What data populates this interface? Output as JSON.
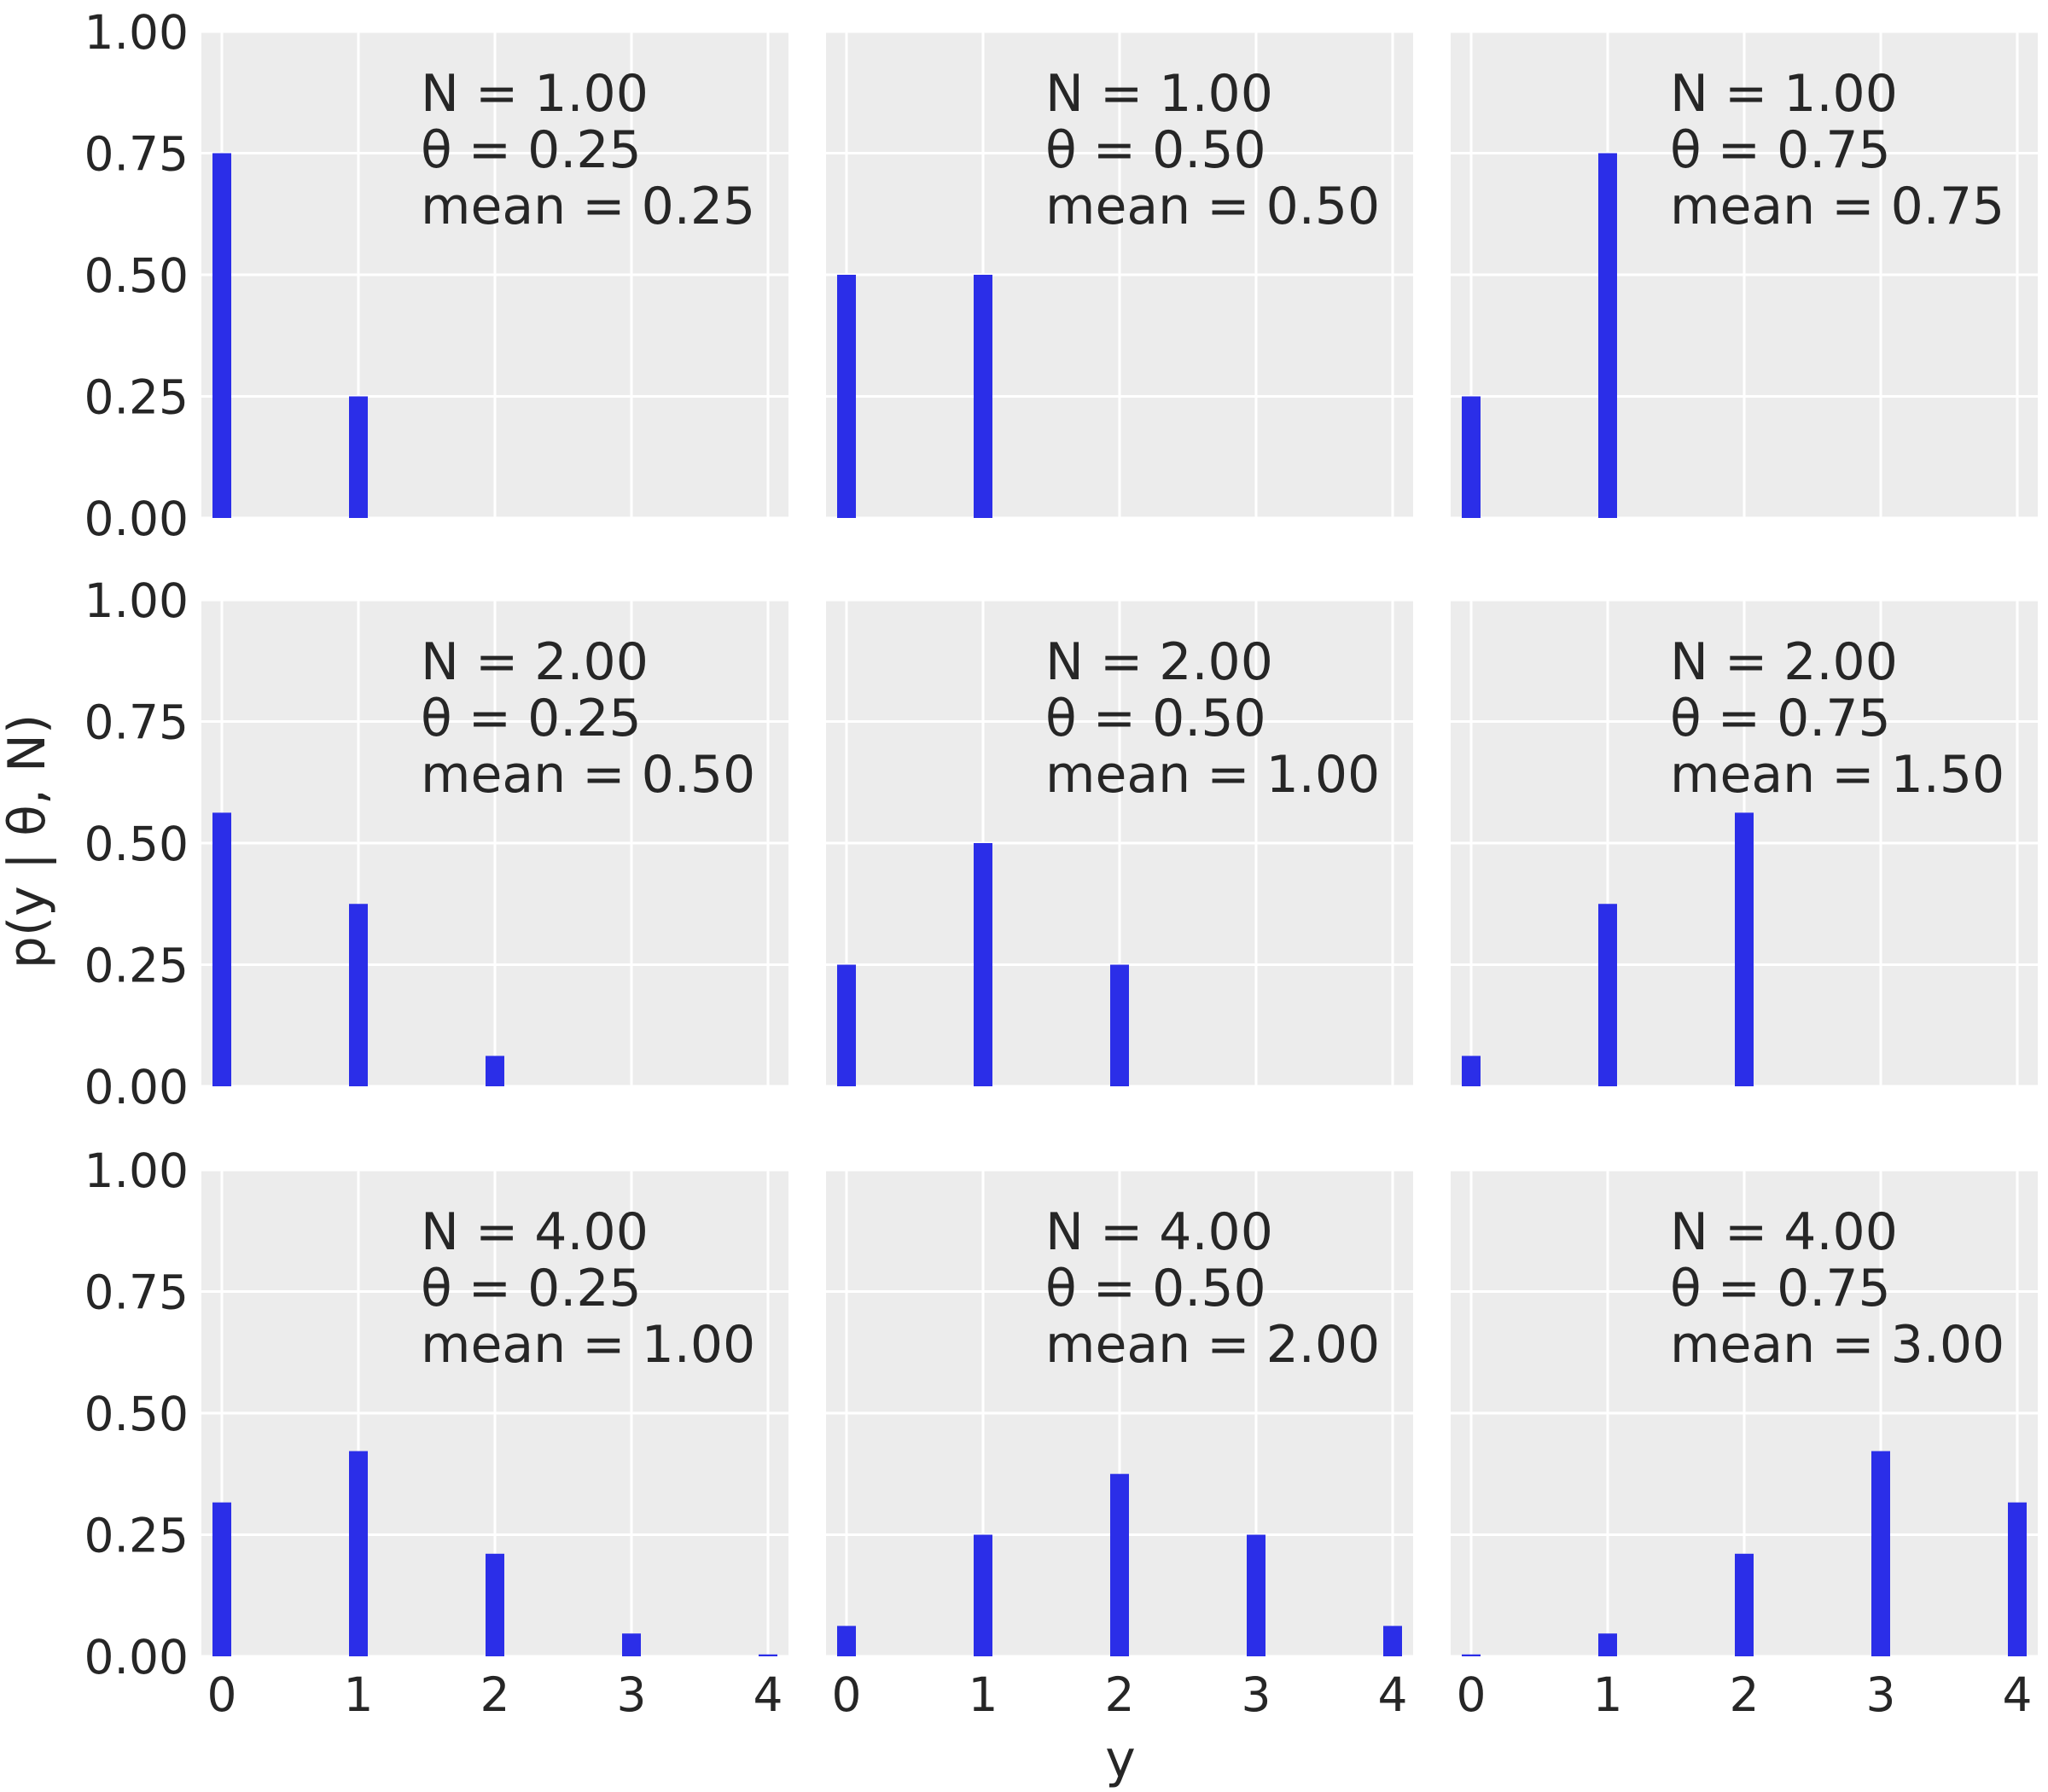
{
  "chart_data": {
    "type": "bar",
    "layout": "3x3 grid of panels, shared x and y axes",
    "xlabel": "y",
    "ylabel": "p(y | θ, N)",
    "xlim": [
      -0.15,
      4.15
    ],
    "ylim": [
      0,
      1
    ],
    "xticks": [
      "0",
      "1",
      "2",
      "3",
      "4"
    ],
    "yticks": [
      "0.00",
      "0.25",
      "0.50",
      "0.75",
      "1.00"
    ],
    "grid": true,
    "background": "#ececec",
    "grid_color": "#ffffff",
    "bar_color": "#2b2ee8",
    "panels": [
      {
        "annotation": [
          "N = 1.00",
          "θ = 0.25",
          "mean = 0.25"
        ],
        "x": [
          0,
          1
        ],
        "values": [
          0.75,
          0.25
        ]
      },
      {
        "annotation": [
          "N = 1.00",
          "θ = 0.50",
          "mean = 0.50"
        ],
        "x": [
          0,
          1
        ],
        "values": [
          0.5,
          0.5
        ]
      },
      {
        "annotation": [
          "N = 1.00",
          "θ = 0.75",
          "mean = 0.75"
        ],
        "x": [
          0,
          1
        ],
        "values": [
          0.25,
          0.75
        ]
      },
      {
        "annotation": [
          "N = 2.00",
          "θ = 0.25",
          "mean = 0.50"
        ],
        "x": [
          0,
          1,
          2
        ],
        "values": [
          0.5625,
          0.375,
          0.0625
        ]
      },
      {
        "annotation": [
          "N = 2.00",
          "θ = 0.50",
          "mean = 1.00"
        ],
        "x": [
          0,
          1,
          2
        ],
        "values": [
          0.25,
          0.5,
          0.25
        ]
      },
      {
        "annotation": [
          "N = 2.00",
          "θ = 0.75",
          "mean = 1.50"
        ],
        "x": [
          0,
          1,
          2
        ],
        "values": [
          0.0625,
          0.375,
          0.5625
        ]
      },
      {
        "annotation": [
          "N = 4.00",
          "θ = 0.25",
          "mean = 1.00"
        ],
        "x": [
          0,
          1,
          2,
          3,
          4
        ],
        "values": [
          0.3164,
          0.4219,
          0.2109,
          0.0469,
          0.0039
        ]
      },
      {
        "annotation": [
          "N = 4.00",
          "θ = 0.50",
          "mean = 2.00"
        ],
        "x": [
          0,
          1,
          2,
          3,
          4
        ],
        "values": [
          0.0625,
          0.25,
          0.375,
          0.25,
          0.0625
        ]
      },
      {
        "annotation": [
          "N = 4.00",
          "θ = 0.75",
          "mean = 3.00"
        ],
        "x": [
          0,
          1,
          2,
          3,
          4
        ],
        "values": [
          0.0039,
          0.0469,
          0.2109,
          0.4219,
          0.3164
        ]
      }
    ]
  }
}
